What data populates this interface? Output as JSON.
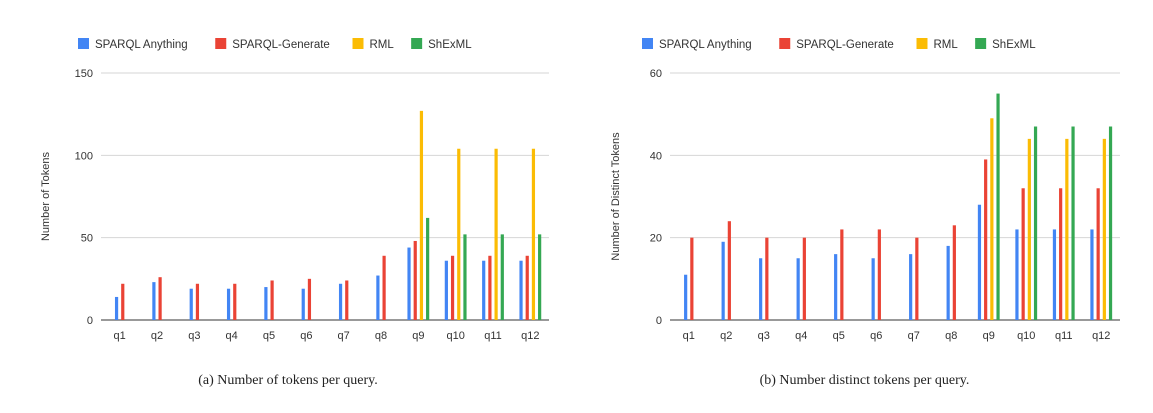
{
  "legend": [
    {
      "name": "SPARQL Anything",
      "color": "#4285f4"
    },
    {
      "name": "SPARQL-Generate",
      "color": "#ea4335"
    },
    {
      "name": "RML",
      "color": "#fbbc04"
    },
    {
      "name": "ShExML",
      "color": "#34a853"
    }
  ],
  "captions": {
    "a": "(a) Number of tokens per query.",
    "b": "(b) Number distinct tokens per query."
  },
  "chart_data": [
    {
      "type": "bar",
      "ylabel": "Number of Tokens",
      "xlabel": "",
      "ylim": [
        0,
        150
      ],
      "yticks": [
        0,
        50,
        100,
        150
      ],
      "grid": true,
      "legend_position": "top",
      "categories": [
        "q1",
        "q2",
        "q3",
        "q4",
        "q5",
        "q6",
        "q7",
        "q8",
        "q9",
        "q10",
        "q11",
        "q12"
      ],
      "series": [
        {
          "name": "SPARQL Anything",
          "color": "#4285f4",
          "values": [
            14,
            23,
            19,
            19,
            20,
            19,
            22,
            27,
            44,
            36,
            36,
            36
          ]
        },
        {
          "name": "SPARQL-Generate",
          "color": "#ea4335",
          "values": [
            22,
            26,
            22,
            22,
            24,
            25,
            24,
            39,
            48,
            39,
            39,
            39
          ]
        },
        {
          "name": "RML",
          "color": "#fbbc04",
          "values": [
            null,
            null,
            null,
            null,
            null,
            null,
            null,
            null,
            127,
            104,
            104,
            104
          ]
        },
        {
          "name": "ShExML",
          "color": "#34a853",
          "values": [
            null,
            null,
            null,
            null,
            null,
            null,
            null,
            null,
            62,
            52,
            52,
            52
          ]
        }
      ]
    },
    {
      "type": "bar",
      "ylabel": "Number of Distinct Tokens",
      "xlabel": "",
      "ylim": [
        0,
        60
      ],
      "yticks": [
        0,
        20,
        40,
        60
      ],
      "grid": true,
      "legend_position": "top",
      "categories": [
        "q1",
        "q2",
        "q3",
        "q4",
        "q5",
        "q6",
        "q7",
        "q8",
        "q9",
        "q10",
        "q11",
        "q12"
      ],
      "series": [
        {
          "name": "SPARQL Anything",
          "color": "#4285f4",
          "values": [
            11,
            19,
            15,
            15,
            16,
            15,
            16,
            18,
            28,
            22,
            22,
            22
          ]
        },
        {
          "name": "SPARQL-Generate",
          "color": "#ea4335",
          "values": [
            20,
            24,
            20,
            20,
            22,
            22,
            20,
            23,
            39,
            32,
            32,
            32
          ]
        },
        {
          "name": "RML",
          "color": "#fbbc04",
          "values": [
            null,
            null,
            null,
            null,
            null,
            null,
            null,
            null,
            49,
            44,
            44,
            44
          ]
        },
        {
          "name": "ShExML",
          "color": "#34a853",
          "values": [
            null,
            null,
            null,
            null,
            null,
            null,
            null,
            null,
            55,
            47,
            47,
            47
          ]
        }
      ]
    }
  ]
}
